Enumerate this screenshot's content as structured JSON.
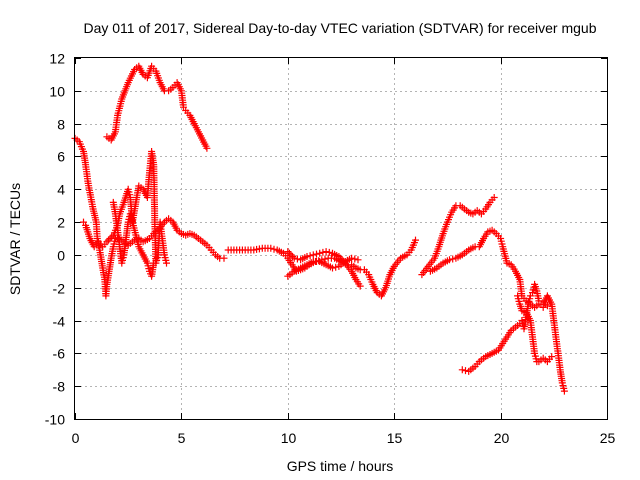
{
  "chart_data": {
    "type": "scatter",
    "title": "Day 011 of 2017, Sidereal Day-to-day VTEC variation (SDTVAR) for receiver mgub",
    "xlabel": "GPS time / hours",
    "ylabel": "SDTVAR / TECUs",
    "xlim": [
      0,
      25
    ],
    "ylim": [
      -10,
      12
    ],
    "xticks": [
      "0",
      "5",
      "10",
      "15",
      "20",
      "25"
    ],
    "yticks": [
      "12",
      "10",
      "8",
      "6",
      "4",
      "2",
      "0",
      "-2",
      "-4",
      "-6",
      "-8",
      "-10"
    ],
    "grid": true,
    "marker": "plus",
    "color": "#ff0000",
    "segments": [
      {
        "points": [
          [
            0.0,
            7.1
          ],
          [
            0.2,
            6.9
          ],
          [
            0.4,
            6.3
          ],
          [
            0.5,
            5.5
          ],
          [
            0.6,
            4.5
          ],
          [
            0.7,
            3.8
          ],
          [
            0.85,
            2.8
          ],
          [
            1.0,
            2.0
          ],
          [
            1.05,
            1.0
          ],
          [
            1.2,
            0.0
          ],
          [
            1.3,
            -0.8
          ],
          [
            1.4,
            -1.5
          ],
          [
            1.45,
            -2.5
          ],
          [
            1.5,
            -1.8
          ],
          [
            1.6,
            -1.0
          ],
          [
            1.7,
            -0.2
          ],
          [
            1.8,
            0.5
          ],
          [
            1.9,
            1.0
          ],
          [
            2.0,
            1.0
          ],
          [
            2.2,
            0.9
          ],
          [
            2.5,
            0.6
          ],
          [
            2.8,
            0.9
          ],
          [
            3.0,
            1.0
          ],
          [
            3.2,
            0.8
          ],
          [
            3.5,
            1.0
          ],
          [
            3.7,
            1.3
          ],
          [
            3.9,
            1.5
          ],
          [
            4.2,
            2.0
          ],
          [
            4.4,
            2.2
          ],
          [
            4.6,
            2.0
          ],
          [
            4.8,
            1.5
          ],
          [
            5.0,
            1.3
          ],
          [
            5.2,
            1.2
          ],
          [
            5.4,
            1.3
          ],
          [
            5.6,
            1.2
          ],
          [
            5.8,
            1.0
          ],
          [
            6.0,
            0.8
          ],
          [
            6.2,
            0.6
          ],
          [
            6.4,
            0.3
          ],
          [
            6.6,
            0.0
          ],
          [
            6.8,
            -0.2
          ],
          [
            7.0,
            -0.2
          ]
        ]
      },
      {
        "points": [
          [
            0.4,
            2.0
          ],
          [
            0.5,
            1.8
          ],
          [
            0.7,
            1.0
          ],
          [
            0.9,
            0.5
          ],
          [
            1.1,
            0.8
          ],
          [
            1.3,
            0.5
          ],
          [
            1.5,
            0.8
          ],
          [
            1.8,
            1.2
          ],
          [
            2.0,
            1.8
          ],
          [
            2.1,
            2.5
          ],
          [
            2.3,
            3.2
          ],
          [
            2.5,
            4.0
          ],
          [
            2.6,
            3.5
          ],
          [
            2.7,
            2.0
          ],
          [
            2.9,
            3.5
          ],
          [
            3.0,
            4.2
          ],
          [
            3.2,
            4.0
          ],
          [
            3.4,
            3.5
          ],
          [
            3.5,
            5.0
          ],
          [
            3.6,
            6.3
          ],
          [
            3.7,
            5.5
          ],
          [
            3.75,
            2.0
          ],
          [
            3.8,
            -0.5
          ],
          [
            3.9,
            0.0
          ],
          [
            4.0,
            2.0
          ],
          [
            4.1,
            1.0
          ],
          [
            4.2,
            0.0
          ],
          [
            4.3,
            -0.5
          ]
        ]
      },
      {
        "points": [
          [
            1.8,
            3.2
          ],
          [
            1.9,
            2.5
          ],
          [
            2.0,
            1.5
          ],
          [
            2.1,
            0.5
          ],
          [
            2.2,
            -0.5
          ],
          [
            2.3,
            0.0
          ],
          [
            2.5,
            2.0
          ],
          [
            2.6,
            2.5
          ],
          [
            2.8,
            1.5
          ],
          [
            3.0,
            0.5
          ],
          [
            3.2,
            0.0
          ],
          [
            3.4,
            -0.5
          ],
          [
            3.5,
            -1.0
          ],
          [
            3.6,
            -1.3
          ],
          [
            3.7,
            -0.5
          ]
        ]
      },
      {
        "points": [
          [
            1.5,
            7.2
          ],
          [
            1.7,
            7.0
          ],
          [
            1.9,
            7.5
          ],
          [
            2.0,
            8.5
          ],
          [
            2.2,
            9.5
          ],
          [
            2.5,
            10.5
          ],
          [
            2.8,
            11.3
          ],
          [
            3.0,
            11.5
          ],
          [
            3.2,
            11.0
          ],
          [
            3.4,
            10.8
          ],
          [
            3.6,
            11.5
          ],
          [
            3.8,
            11.2
          ],
          [
            4.0,
            10.5
          ],
          [
            4.2,
            10.0
          ],
          [
            4.4,
            10.0
          ],
          [
            4.6,
            10.2
          ],
          [
            4.8,
            10.5
          ],
          [
            5.0,
            10.0
          ],
          [
            5.1,
            9.0
          ],
          [
            5.2,
            8.8
          ],
          [
            5.4,
            8.5
          ],
          [
            5.6,
            8.0
          ],
          [
            5.8,
            7.5
          ],
          [
            6.0,
            7.0
          ],
          [
            6.2,
            6.5
          ]
        ]
      },
      {
        "points": [
          [
            7.2,
            0.3
          ],
          [
            7.6,
            0.3
          ],
          [
            8.0,
            0.3
          ],
          [
            8.4,
            0.3
          ],
          [
            8.8,
            0.4
          ],
          [
            9.2,
            0.4
          ],
          [
            9.5,
            0.3
          ],
          [
            9.8,
            0.1
          ],
          [
            10.0,
            -0.2
          ],
          [
            10.2,
            -0.6
          ],
          [
            10.4,
            -1.0
          ],
          [
            10.6,
            -0.9
          ],
          [
            10.8,
            -0.8
          ],
          [
            11.0,
            -0.6
          ],
          [
            11.3,
            -0.4
          ],
          [
            11.6,
            -0.3
          ],
          [
            11.9,
            -0.2
          ],
          [
            12.2,
            -0.2
          ],
          [
            12.5,
            -0.4
          ],
          [
            12.8,
            -0.6
          ],
          [
            13.0,
            -0.6
          ],
          [
            13.2,
            -0.8
          ],
          [
            13.4,
            -0.9
          ],
          [
            13.6,
            -0.9
          ],
          [
            13.8,
            -1.2
          ],
          [
            14.0,
            -1.8
          ],
          [
            14.2,
            -2.3
          ],
          [
            14.4,
            -2.5
          ],
          [
            14.6,
            -2.0
          ],
          [
            14.8,
            -1.2
          ],
          [
            15.0,
            -0.7
          ],
          [
            15.3,
            -0.2
          ],
          [
            15.6,
            0.0
          ],
          [
            15.8,
            0.3
          ],
          [
            16.0,
            0.9
          ]
        ]
      },
      {
        "points": [
          [
            10.0,
            0.2
          ],
          [
            10.3,
            -0.2
          ],
          [
            10.6,
            -0.3
          ],
          [
            10.9,
            -0.1
          ],
          [
            11.2,
            0.0
          ],
          [
            11.5,
            0.1
          ],
          [
            11.8,
            0.2
          ],
          [
            12.1,
            0.1
          ],
          [
            12.4,
            -0.1
          ],
          [
            12.7,
            -0.5
          ],
          [
            13.0,
            -1.0
          ],
          [
            13.2,
            -1.5
          ],
          [
            13.4,
            -1.9
          ]
        ]
      },
      {
        "points": [
          [
            10.0,
            -1.3
          ],
          [
            10.3,
            -1.0
          ],
          [
            10.6,
            -0.8
          ],
          [
            10.9,
            -0.6
          ],
          [
            11.2,
            -0.4
          ],
          [
            11.5,
            -0.4
          ],
          [
            11.8,
            -0.6
          ],
          [
            12.1,
            -0.8
          ],
          [
            12.4,
            -0.7
          ],
          [
            12.7,
            -0.4
          ],
          [
            13.0,
            -0.2
          ],
          [
            13.3,
            -0.3
          ]
        ]
      },
      {
        "points": [
          [
            16.3,
            -1.2
          ],
          [
            16.6,
            -0.7
          ],
          [
            16.9,
            -0.2
          ],
          [
            17.1,
            0.5
          ],
          [
            17.3,
            1.3
          ],
          [
            17.5,
            2.0
          ],
          [
            17.7,
            2.6
          ],
          [
            17.9,
            3.0
          ],
          [
            18.1,
            3.0
          ],
          [
            18.3,
            2.8
          ],
          [
            18.5,
            2.6
          ],
          [
            18.7,
            2.5
          ],
          [
            18.9,
            2.7
          ],
          [
            19.1,
            2.5
          ],
          [
            19.3,
            2.8
          ],
          [
            19.5,
            3.2
          ],
          [
            19.7,
            3.5
          ]
        ]
      },
      {
        "points": [
          [
            16.7,
            -1.0
          ],
          [
            17.0,
            -0.8
          ],
          [
            17.3,
            -0.5
          ],
          [
            17.6,
            -0.3
          ],
          [
            17.9,
            -0.2
          ],
          [
            18.2,
            0.0
          ],
          [
            18.5,
            0.3
          ],
          [
            18.8,
            0.5
          ],
          [
            19.0,
            0.5
          ],
          [
            19.2,
            1.0
          ],
          [
            19.4,
            1.4
          ],
          [
            19.6,
            1.5
          ],
          [
            19.8,
            1.3
          ],
          [
            20.0,
            1.0
          ],
          [
            20.1,
            0.5
          ],
          [
            20.3,
            -0.5
          ],
          [
            20.5,
            -0.6
          ],
          [
            20.7,
            -1.0
          ],
          [
            20.9,
            -1.5
          ],
          [
            21.0,
            -2.5
          ],
          [
            21.2,
            -2.8
          ],
          [
            21.4,
            -3.0
          ],
          [
            21.6,
            -3.2
          ],
          [
            21.8,
            -3.0
          ],
          [
            22.0,
            -3.0
          ],
          [
            22.2,
            -2.5
          ],
          [
            22.4,
            -3.0
          ],
          [
            22.5,
            -4.0
          ],
          [
            22.6,
            -5.0
          ],
          [
            22.7,
            -6.0
          ],
          [
            22.8,
            -7.0
          ],
          [
            22.9,
            -7.8
          ],
          [
            23.0,
            -8.3
          ]
        ]
      },
      {
        "points": [
          [
            18.2,
            -7.0
          ],
          [
            18.5,
            -7.1
          ],
          [
            18.8,
            -6.8
          ],
          [
            19.0,
            -6.5
          ],
          [
            19.3,
            -6.2
          ],
          [
            19.6,
            -6.0
          ],
          [
            19.9,
            -5.8
          ],
          [
            20.1,
            -5.4
          ],
          [
            20.3,
            -5.0
          ],
          [
            20.5,
            -4.6
          ],
          [
            20.7,
            -4.4
          ],
          [
            20.9,
            -4.2
          ],
          [
            21.0,
            -4.0
          ],
          [
            21.1,
            -4.5
          ],
          [
            21.2,
            -3.8
          ],
          [
            21.3,
            -3.0
          ],
          [
            21.4,
            -2.5
          ],
          [
            21.5,
            -2.3
          ],
          [
            21.6,
            -1.8
          ],
          [
            21.7,
            -2.2
          ],
          [
            21.8,
            -2.8
          ],
          [
            21.9,
            -3.0
          ],
          [
            22.0,
            -3.2
          ],
          [
            22.1,
            -3.0
          ],
          [
            22.2,
            -3.1
          ]
        ]
      },
      {
        "points": [
          [
            20.8,
            -2.5
          ],
          [
            20.9,
            -3.0
          ],
          [
            21.0,
            -3.4
          ],
          [
            21.2,
            -3.5
          ],
          [
            21.4,
            -4.0
          ],
          [
            21.5,
            -5.0
          ],
          [
            21.6,
            -6.0
          ],
          [
            21.7,
            -6.5
          ],
          [
            21.8,
            -6.5
          ],
          [
            22.0,
            -6.3
          ],
          [
            22.2,
            -6.5
          ],
          [
            22.4,
            -6.2
          ]
        ]
      }
    ]
  }
}
